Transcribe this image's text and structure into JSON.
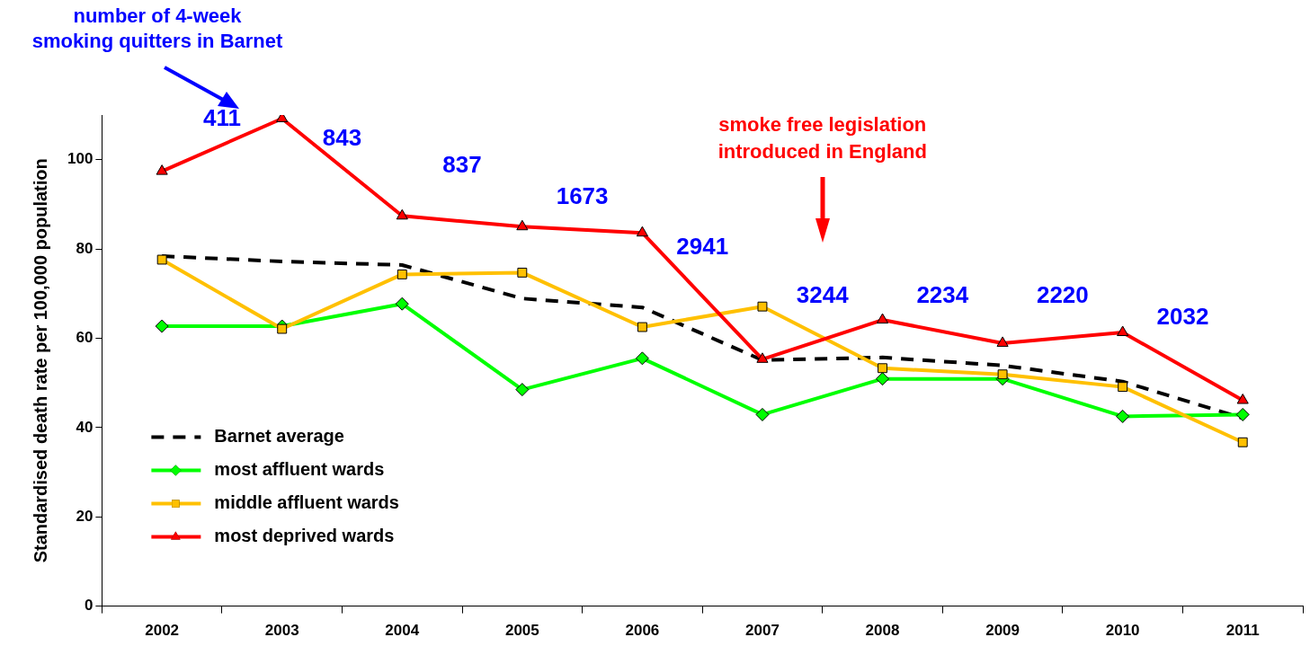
{
  "chart_data": {
    "type": "line",
    "ylabel": "Standardised death rate per 100,000 population",
    "categories": [
      "2002",
      "2003",
      "2004",
      "2005",
      "2006",
      "2007",
      "2008",
      "2009",
      "2010",
      "2011"
    ],
    "ylim": [
      0,
      110
    ],
    "yticks": [
      0,
      20,
      40,
      60,
      80,
      100
    ],
    "grid": false,
    "legend": "bottom left",
    "series": [
      {
        "name": "Barnet average",
        "color": "#000000",
        "line_style": "dashed",
        "marker": "none",
        "values": [
          78.4,
          77.2,
          76.4,
          68.9,
          66.9,
          55.1,
          55.7,
          53.9,
          50.3,
          42.1
        ]
      },
      {
        "name": "most affluent wards",
        "color": "#00ff00",
        "marker": "diamond",
        "values": [
          62.7,
          62.7,
          67.7,
          48.5,
          55.5,
          42.9,
          50.9,
          50.9,
          42.5,
          42.9
        ]
      },
      {
        "name": "middle affluent wards",
        "color": "#ffc000",
        "marker": "square",
        "values": [
          77.6,
          62.1,
          74.3,
          74.7,
          62.5,
          67.1,
          53.3,
          51.9,
          49.1,
          36.7
        ]
      },
      {
        "name": "most deprived wards",
        "color": "#ff0000",
        "marker": "triangle",
        "values": [
          97.4,
          109.2,
          87.4,
          85,
          83.6,
          55.3,
          64.1,
          58.9,
          61.3,
          46.1
        ]
      }
    ],
    "annotations": [
      "number of 4-week\nsmoking quitters in Barnet",
      "411",
      "843",
      "837",
      "1673",
      "2941",
      "3244",
      "2234",
      "2220",
      "2032",
      "smoke free legislation\nintroduced in England"
    ]
  }
}
